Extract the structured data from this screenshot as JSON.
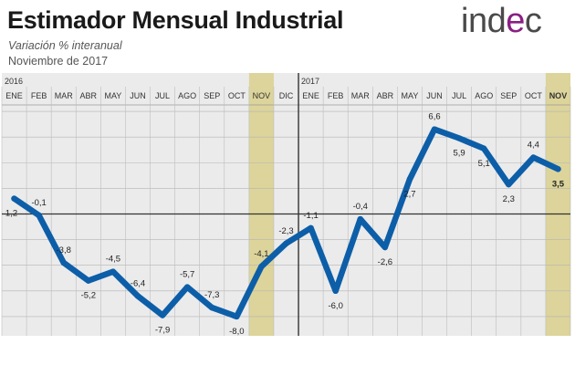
{
  "header": {
    "title": "Estimador Mensual Industrial",
    "subtitle": "Variación % interanual",
    "date": "Noviembre de 2017"
  },
  "logo": {
    "text_left": "ind",
    "text_accent": "e",
    "text_right": "c",
    "accent_color": "#8a1f83"
  },
  "colors": {
    "line": "#0d5ea8",
    "highlight_band": "#dcd49a",
    "plot_background": "#ebebeb",
    "grid": "#b5b5b5"
  },
  "chart_data": {
    "type": "line",
    "years": [
      {
        "label": "2016",
        "start_index": 0
      },
      {
        "label": "2017",
        "start_index": 12
      }
    ],
    "categories": [
      "ENE",
      "FEB",
      "MAR",
      "ABR",
      "MAY",
      "JUN",
      "JUL",
      "AGO",
      "SEP",
      "OCT",
      "NOV",
      "DIC",
      "ENE",
      "FEB",
      "MAR",
      "ABR",
      "MAY",
      "JUN",
      "JUL",
      "AGO",
      "SEP",
      "OCT",
      "NOV"
    ],
    "series": [
      {
        "values": [
          1.2,
          -0.1,
          -3.8,
          -5.2,
          -4.5,
          -6.4,
          -7.9,
          -5.7,
          -7.3,
          -8.0,
          -4.1,
          -2.3,
          -1.1,
          -6.0,
          -0.4,
          -2.6,
          2.7,
          6.6,
          5.9,
          5.1,
          2.3,
          4.4,
          3.5
        ],
        "labels": [
          "1,2",
          "-0,1",
          "-3,8",
          "-5,2",
          "-4,5",
          "-6,4",
          "-7,9",
          "-5,7",
          "-7,3",
          "-8,0",
          "-4,1",
          "-2,3",
          "-1,1",
          "-6,0",
          "-0,4",
          "-2,6",
          "2,7",
          "6,6",
          "5,9",
          "5,1",
          "2,3",
          "4,4",
          "3,5"
        ]
      }
    ],
    "highlight_indices": [
      10,
      22
    ],
    "bold_indices": [
      22
    ],
    "ylim": [
      -9.5,
      8.5
    ],
    "grid": true,
    "zero_line": true
  }
}
